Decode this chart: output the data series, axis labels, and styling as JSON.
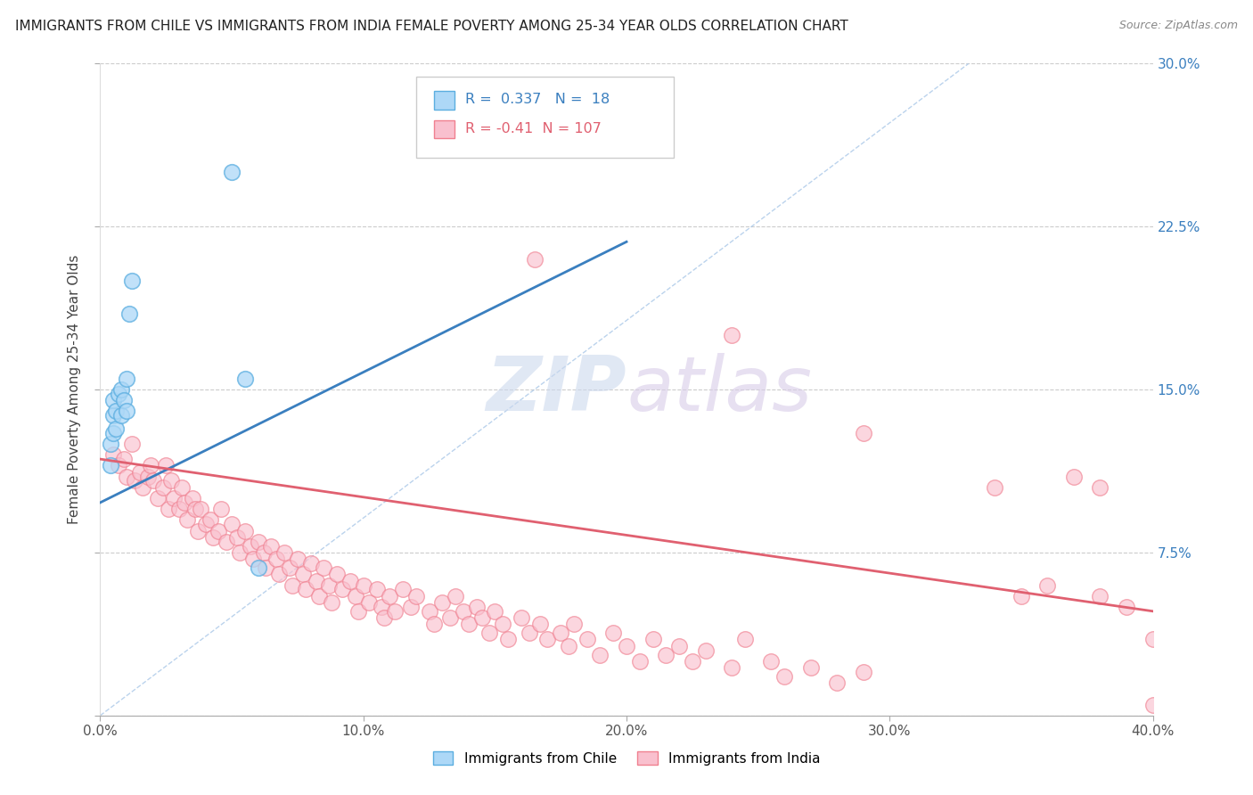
{
  "title": "IMMIGRANTS FROM CHILE VS IMMIGRANTS FROM INDIA FEMALE POVERTY AMONG 25-34 YEAR OLDS CORRELATION CHART",
  "source": "Source: ZipAtlas.com",
  "ylabel": "Female Poverty Among 25-34 Year Olds",
  "xlim": [
    0.0,
    0.4
  ],
  "ylim": [
    0.0,
    0.3
  ],
  "xticks": [
    0.0,
    0.1,
    0.2,
    0.3,
    0.4
  ],
  "yticks": [
    0.0,
    0.075,
    0.15,
    0.225,
    0.3
  ],
  "xticklabels": [
    "0.0%",
    "10.0%",
    "20.0%",
    "30.0%",
    "40.0%"
  ],
  "right_yticklabels": [
    "",
    "7.5%",
    "15.0%",
    "22.5%",
    "30.0%"
  ],
  "chile_R": 0.337,
  "chile_N": 18,
  "india_R": -0.41,
  "india_N": 107,
  "chile_fill": "#add8f7",
  "chile_edge": "#5baee0",
  "india_fill": "#f9c0ce",
  "india_edge": "#f08090",
  "chile_line_color": "#3a7fbf",
  "india_line_color": "#e06070",
  "diag_line_color": "#aac8e8",
  "background_color": "#ffffff",
  "watermark_zip": "ZIP",
  "watermark_atlas": "atlas",
  "chile_x": [
    0.004,
    0.004,
    0.005,
    0.005,
    0.005,
    0.006,
    0.006,
    0.007,
    0.008,
    0.008,
    0.009,
    0.01,
    0.01,
    0.011,
    0.012,
    0.05,
    0.055,
    0.06
  ],
  "chile_y": [
    0.115,
    0.125,
    0.13,
    0.138,
    0.145,
    0.132,
    0.14,
    0.148,
    0.138,
    0.15,
    0.145,
    0.14,
    0.155,
    0.185,
    0.2,
    0.25,
    0.155,
    0.068
  ],
  "india_x": [
    0.005,
    0.007,
    0.009,
    0.01,
    0.012,
    0.013,
    0.015,
    0.016,
    0.018,
    0.019,
    0.02,
    0.022,
    0.024,
    0.025,
    0.026,
    0.027,
    0.028,
    0.03,
    0.031,
    0.032,
    0.033,
    0.035,
    0.036,
    0.037,
    0.038,
    0.04,
    0.042,
    0.043,
    0.045,
    0.046,
    0.048,
    0.05,
    0.052,
    0.053,
    0.055,
    0.057,
    0.058,
    0.06,
    0.062,
    0.063,
    0.065,
    0.067,
    0.068,
    0.07,
    0.072,
    0.073,
    0.075,
    0.077,
    0.078,
    0.08,
    0.082,
    0.083,
    0.085,
    0.087,
    0.088,
    0.09,
    0.092,
    0.095,
    0.097,
    0.098,
    0.1,
    0.102,
    0.105,
    0.107,
    0.108,
    0.11,
    0.112,
    0.115,
    0.118,
    0.12,
    0.125,
    0.127,
    0.13,
    0.133,
    0.135,
    0.138,
    0.14,
    0.143,
    0.145,
    0.148,
    0.15,
    0.153,
    0.155,
    0.16,
    0.163,
    0.167,
    0.17,
    0.175,
    0.178,
    0.18,
    0.185,
    0.19,
    0.195,
    0.2,
    0.205,
    0.21,
    0.215,
    0.22,
    0.225,
    0.23,
    0.24,
    0.245,
    0.255,
    0.26,
    0.27,
    0.28,
    0.29
  ],
  "india_y": [
    0.12,
    0.115,
    0.118,
    0.11,
    0.125,
    0.108,
    0.112,
    0.105,
    0.11,
    0.115,
    0.108,
    0.1,
    0.105,
    0.115,
    0.095,
    0.108,
    0.1,
    0.095,
    0.105,
    0.098,
    0.09,
    0.1,
    0.095,
    0.085,
    0.095,
    0.088,
    0.09,
    0.082,
    0.085,
    0.095,
    0.08,
    0.088,
    0.082,
    0.075,
    0.085,
    0.078,
    0.072,
    0.08,
    0.075,
    0.068,
    0.078,
    0.072,
    0.065,
    0.075,
    0.068,
    0.06,
    0.072,
    0.065,
    0.058,
    0.07,
    0.062,
    0.055,
    0.068,
    0.06,
    0.052,
    0.065,
    0.058,
    0.062,
    0.055,
    0.048,
    0.06,
    0.052,
    0.058,
    0.05,
    0.045,
    0.055,
    0.048,
    0.058,
    0.05,
    0.055,
    0.048,
    0.042,
    0.052,
    0.045,
    0.055,
    0.048,
    0.042,
    0.05,
    0.045,
    0.038,
    0.048,
    0.042,
    0.035,
    0.045,
    0.038,
    0.042,
    0.035,
    0.038,
    0.032,
    0.042,
    0.035,
    0.028,
    0.038,
    0.032,
    0.025,
    0.035,
    0.028,
    0.032,
    0.025,
    0.03,
    0.022,
    0.035,
    0.025,
    0.018,
    0.022,
    0.015,
    0.02
  ]
}
